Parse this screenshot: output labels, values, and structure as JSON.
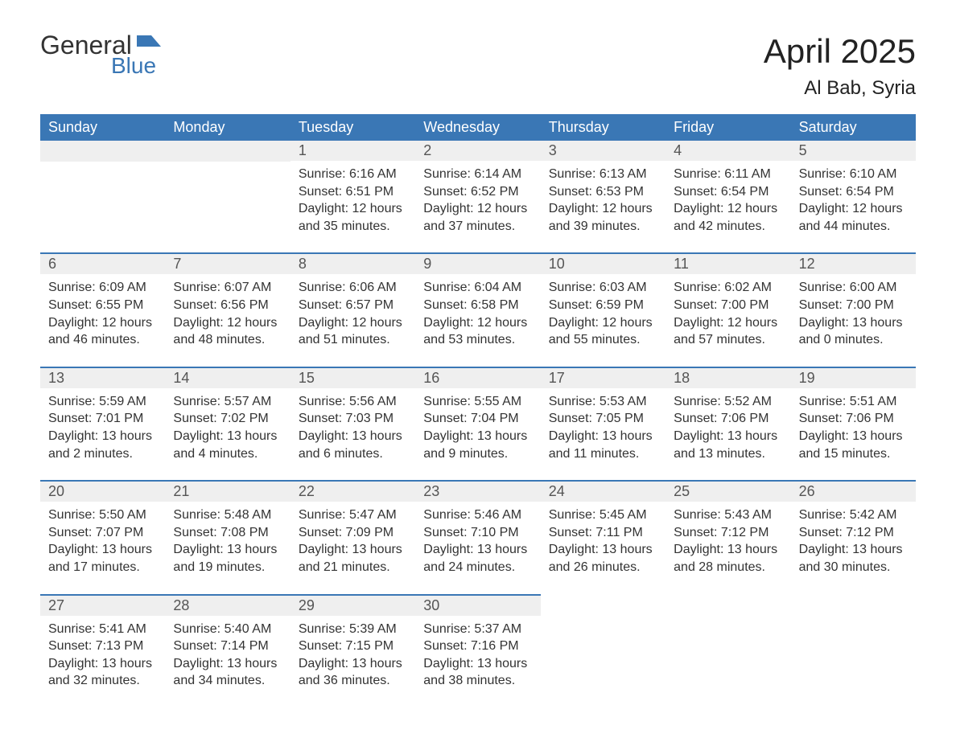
{
  "logo": {
    "word1": "General",
    "word2": "Blue",
    "icon_color": "#3a77b5"
  },
  "title": "April 2025",
  "location": "Al Bab, Syria",
  "header_bg": "#3a77b5",
  "header_text_color": "#ffffff",
  "daynum_bg": "#efefef",
  "text_color": "#333333",
  "day_headers": [
    "Sunday",
    "Monday",
    "Tuesday",
    "Wednesday",
    "Thursday",
    "Friday",
    "Saturday"
  ],
  "weeks": [
    [
      {
        "empty": true
      },
      {
        "empty": true
      },
      {
        "n": "1",
        "sr": "Sunrise: 6:16 AM",
        "ss": "Sunset: 6:51 PM",
        "d1": "Daylight: 12 hours",
        "d2": "and 35 minutes."
      },
      {
        "n": "2",
        "sr": "Sunrise: 6:14 AM",
        "ss": "Sunset: 6:52 PM",
        "d1": "Daylight: 12 hours",
        "d2": "and 37 minutes."
      },
      {
        "n": "3",
        "sr": "Sunrise: 6:13 AM",
        "ss": "Sunset: 6:53 PM",
        "d1": "Daylight: 12 hours",
        "d2": "and 39 minutes."
      },
      {
        "n": "4",
        "sr": "Sunrise: 6:11 AM",
        "ss": "Sunset: 6:54 PM",
        "d1": "Daylight: 12 hours",
        "d2": "and 42 minutes."
      },
      {
        "n": "5",
        "sr": "Sunrise: 6:10 AM",
        "ss": "Sunset: 6:54 PM",
        "d1": "Daylight: 12 hours",
        "d2": "and 44 minutes."
      }
    ],
    [
      {
        "n": "6",
        "sr": "Sunrise: 6:09 AM",
        "ss": "Sunset: 6:55 PM",
        "d1": "Daylight: 12 hours",
        "d2": "and 46 minutes."
      },
      {
        "n": "7",
        "sr": "Sunrise: 6:07 AM",
        "ss": "Sunset: 6:56 PM",
        "d1": "Daylight: 12 hours",
        "d2": "and 48 minutes."
      },
      {
        "n": "8",
        "sr": "Sunrise: 6:06 AM",
        "ss": "Sunset: 6:57 PM",
        "d1": "Daylight: 12 hours",
        "d2": "and 51 minutes."
      },
      {
        "n": "9",
        "sr": "Sunrise: 6:04 AM",
        "ss": "Sunset: 6:58 PM",
        "d1": "Daylight: 12 hours",
        "d2": "and 53 minutes."
      },
      {
        "n": "10",
        "sr": "Sunrise: 6:03 AM",
        "ss": "Sunset: 6:59 PM",
        "d1": "Daylight: 12 hours",
        "d2": "and 55 minutes."
      },
      {
        "n": "11",
        "sr": "Sunrise: 6:02 AM",
        "ss": "Sunset: 7:00 PM",
        "d1": "Daylight: 12 hours",
        "d2": "and 57 minutes."
      },
      {
        "n": "12",
        "sr": "Sunrise: 6:00 AM",
        "ss": "Sunset: 7:00 PM",
        "d1": "Daylight: 13 hours",
        "d2": "and 0 minutes."
      }
    ],
    [
      {
        "n": "13",
        "sr": "Sunrise: 5:59 AM",
        "ss": "Sunset: 7:01 PM",
        "d1": "Daylight: 13 hours",
        "d2": "and 2 minutes."
      },
      {
        "n": "14",
        "sr": "Sunrise: 5:57 AM",
        "ss": "Sunset: 7:02 PM",
        "d1": "Daylight: 13 hours",
        "d2": "and 4 minutes."
      },
      {
        "n": "15",
        "sr": "Sunrise: 5:56 AM",
        "ss": "Sunset: 7:03 PM",
        "d1": "Daylight: 13 hours",
        "d2": "and 6 minutes."
      },
      {
        "n": "16",
        "sr": "Sunrise: 5:55 AM",
        "ss": "Sunset: 7:04 PM",
        "d1": "Daylight: 13 hours",
        "d2": "and 9 minutes."
      },
      {
        "n": "17",
        "sr": "Sunrise: 5:53 AM",
        "ss": "Sunset: 7:05 PM",
        "d1": "Daylight: 13 hours",
        "d2": "and 11 minutes."
      },
      {
        "n": "18",
        "sr": "Sunrise: 5:52 AM",
        "ss": "Sunset: 7:06 PM",
        "d1": "Daylight: 13 hours",
        "d2": "and 13 minutes."
      },
      {
        "n": "19",
        "sr": "Sunrise: 5:51 AM",
        "ss": "Sunset: 7:06 PM",
        "d1": "Daylight: 13 hours",
        "d2": "and 15 minutes."
      }
    ],
    [
      {
        "n": "20",
        "sr": "Sunrise: 5:50 AM",
        "ss": "Sunset: 7:07 PM",
        "d1": "Daylight: 13 hours",
        "d2": "and 17 minutes."
      },
      {
        "n": "21",
        "sr": "Sunrise: 5:48 AM",
        "ss": "Sunset: 7:08 PM",
        "d1": "Daylight: 13 hours",
        "d2": "and 19 minutes."
      },
      {
        "n": "22",
        "sr": "Sunrise: 5:47 AM",
        "ss": "Sunset: 7:09 PM",
        "d1": "Daylight: 13 hours",
        "d2": "and 21 minutes."
      },
      {
        "n": "23",
        "sr": "Sunrise: 5:46 AM",
        "ss": "Sunset: 7:10 PM",
        "d1": "Daylight: 13 hours",
        "d2": "and 24 minutes."
      },
      {
        "n": "24",
        "sr": "Sunrise: 5:45 AM",
        "ss": "Sunset: 7:11 PM",
        "d1": "Daylight: 13 hours",
        "d2": "and 26 minutes."
      },
      {
        "n": "25",
        "sr": "Sunrise: 5:43 AM",
        "ss": "Sunset: 7:12 PM",
        "d1": "Daylight: 13 hours",
        "d2": "and 28 minutes."
      },
      {
        "n": "26",
        "sr": "Sunrise: 5:42 AM",
        "ss": "Sunset: 7:12 PM",
        "d1": "Daylight: 13 hours",
        "d2": "and 30 minutes."
      }
    ],
    [
      {
        "n": "27",
        "sr": "Sunrise: 5:41 AM",
        "ss": "Sunset: 7:13 PM",
        "d1": "Daylight: 13 hours",
        "d2": "and 32 minutes."
      },
      {
        "n": "28",
        "sr": "Sunrise: 5:40 AM",
        "ss": "Sunset: 7:14 PM",
        "d1": "Daylight: 13 hours",
        "d2": "and 34 minutes."
      },
      {
        "n": "29",
        "sr": "Sunrise: 5:39 AM",
        "ss": "Sunset: 7:15 PM",
        "d1": "Daylight: 13 hours",
        "d2": "and 36 minutes."
      },
      {
        "n": "30",
        "sr": "Sunrise: 5:37 AM",
        "ss": "Sunset: 7:16 PM",
        "d1": "Daylight: 13 hours",
        "d2": "and 38 minutes."
      },
      {
        "empty": true,
        "blank": true
      },
      {
        "empty": true,
        "blank": true
      },
      {
        "empty": true,
        "blank": true
      }
    ]
  ]
}
